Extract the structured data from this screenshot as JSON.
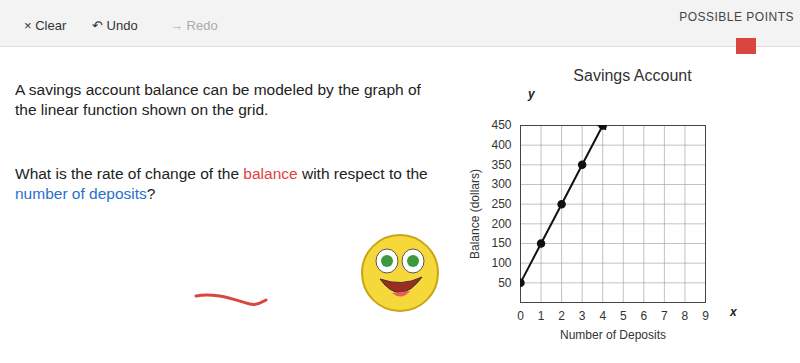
{
  "toolbar": {
    "clear": "× Clear",
    "undo": "↶ Undo",
    "redo": "→ Redo",
    "points": "POSSIBLE POINTS"
  },
  "question": {
    "intro": "A savings account balance can be modeled by the graph of the linear function shown on the grid.",
    "prompt": [
      {
        "text": "What is the rate of change of the "
      },
      {
        "text": "balance",
        "color": "#e0433a"
      },
      {
        "text": " with respect to the "
      },
      {
        "text": "number of deposits",
        "color": "#2a6fc9"
      },
      {
        "text": "?"
      }
    ]
  },
  "chart_data": {
    "type": "line",
    "title": "Savings Account",
    "x_label": "Number of Deposits",
    "y_label": "Balance (dollars)",
    "x_axis_letter": "x",
    "y_axis_letter": "y",
    "x": [
      0,
      1,
      2,
      3,
      4
    ],
    "values": [
      50,
      150,
      250,
      350,
      450
    ],
    "color": "#111111",
    "marker": "dot",
    "xlim": [
      0,
      9
    ],
    "xticks": [
      0,
      1,
      2,
      3,
      4,
      5,
      6,
      7,
      8,
      9
    ],
    "ylim": [
      0,
      450
    ],
    "yticks": [
      50,
      100,
      150,
      200,
      250,
      300,
      350,
      400,
      450
    ],
    "grid": true
  }
}
